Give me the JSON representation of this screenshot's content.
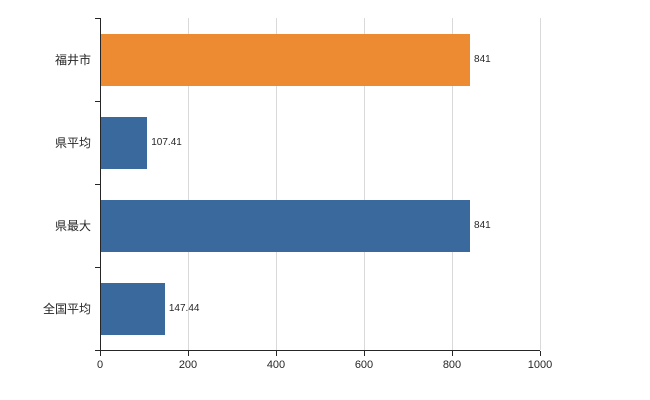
{
  "chart_data": {
    "type": "bar",
    "orientation": "horizontal",
    "title": "",
    "xlabel": "",
    "ylabel": "",
    "categories": [
      "福井市",
      "県平均",
      "県最大",
      "全国平均"
    ],
    "values": [
      841,
      107.41,
      841,
      147.44
    ],
    "value_labels": [
      "841",
      "107.41",
      "841",
      "147.44"
    ],
    "bar_colors": [
      "#ed8b33",
      "#3a699e",
      "#3a699e",
      "#3a699e"
    ],
    "xlim": [
      0,
      1000
    ],
    "x_ticks": [
      0,
      200,
      400,
      600,
      800,
      1000
    ],
    "x_tick_labels": [
      "0",
      "200",
      "400",
      "600",
      "800",
      "1000"
    ],
    "grid": true,
    "gridline_color": "#d9d9d9",
    "axis_color": "#262626",
    "legend": "none"
  }
}
